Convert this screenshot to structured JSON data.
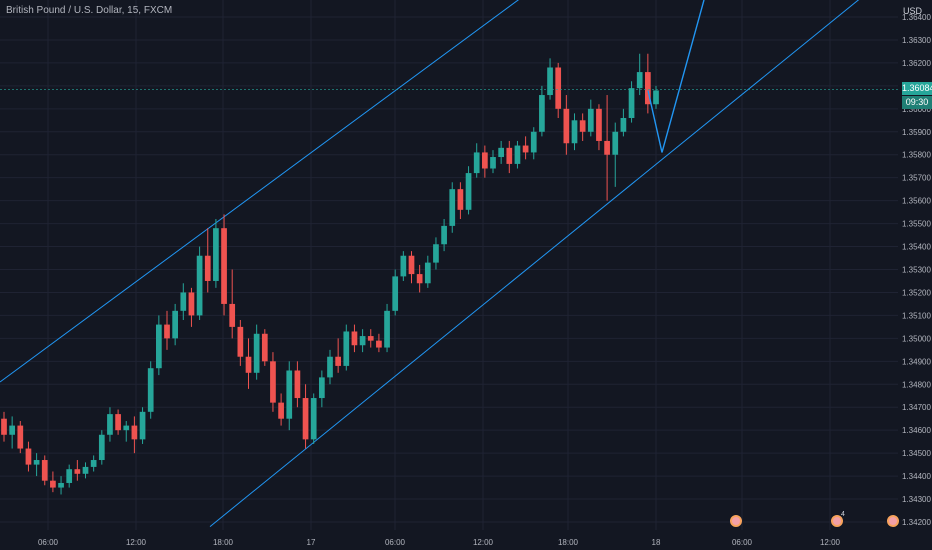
{
  "header": {
    "symbol_title": "British Pound / U.S. Dollar, 15, FXCM",
    "currency": "USD"
  },
  "price_tag": {
    "value": "1.36084",
    "countdown": "09:30"
  },
  "events": {
    "count_badge": "4"
  },
  "colors": {
    "background": "#131722",
    "grid": "#1f2333",
    "up": "#26a69a",
    "down": "#ef5350",
    "trend_line": "#2196f3",
    "text": "#b2b5be"
  },
  "chart_data": {
    "type": "candlestick",
    "xlabel": "",
    "ylabel": "",
    "x_ticks": [
      "06:00",
      "12:00",
      "18:00",
      "17",
      "06:00",
      "12:00",
      "18:00",
      "18",
      "06:00",
      "12:00"
    ],
    "y_ticks": [
      "1.34200",
      "1.34300",
      "1.34400",
      "1.34500",
      "1.34600",
      "1.34700",
      "1.34800",
      "1.34900",
      "1.35000",
      "1.35100",
      "1.35200",
      "1.35300",
      "1.35400",
      "1.35500",
      "1.35600",
      "1.35700",
      "1.35800",
      "1.35900",
      "1.36000",
      "1.36100",
      "1.36200",
      "1.36300",
      "1.36400"
    ],
    "ylim": [
      1.3415,
      1.3648
    ],
    "last_price": 1.36084,
    "candles": [
      [
        1.3465,
        1.3468,
        1.3455,
        1.3458
      ],
      [
        1.3458,
        1.3466,
        1.3452,
        1.3462
      ],
      [
        1.3462,
        1.3464,
        1.345,
        1.3452
      ],
      [
        1.3452,
        1.3455,
        1.3442,
        1.3445
      ],
      [
        1.3445,
        1.345,
        1.344,
        1.3447
      ],
      [
        1.3447,
        1.3449,
        1.3436,
        1.3438
      ],
      [
        1.3438,
        1.3442,
        1.3433,
        1.3435
      ],
      [
        1.3435,
        1.344,
        1.3432,
        1.3437
      ],
      [
        1.3437,
        1.3445,
        1.3435,
        1.3443
      ],
      [
        1.3443,
        1.3447,
        1.3438,
        1.3441
      ],
      [
        1.3441,
        1.3446,
        1.3439,
        1.3444
      ],
      [
        1.3444,
        1.3449,
        1.3442,
        1.3447
      ],
      [
        1.3447,
        1.346,
        1.3445,
        1.3458
      ],
      [
        1.3458,
        1.347,
        1.3455,
        1.3467
      ],
      [
        1.3467,
        1.3469,
        1.3458,
        1.346
      ],
      [
        1.346,
        1.3464,
        1.3455,
        1.3462
      ],
      [
        1.3462,
        1.3466,
        1.345,
        1.3456
      ],
      [
        1.3456,
        1.347,
        1.3454,
        1.3468
      ],
      [
        1.3468,
        1.349,
        1.3465,
        1.3487
      ],
      [
        1.3487,
        1.351,
        1.3484,
        1.3506
      ],
      [
        1.3506,
        1.3512,
        1.3495,
        1.35
      ],
      [
        1.35,
        1.3515,
        1.3497,
        1.3512
      ],
      [
        1.3512,
        1.3524,
        1.3508,
        1.352
      ],
      [
        1.352,
        1.3522,
        1.3505,
        1.351
      ],
      [
        1.351,
        1.354,
        1.3508,
        1.3536
      ],
      [
        1.3536,
        1.3548,
        1.352,
        1.3525
      ],
      [
        1.3525,
        1.3552,
        1.3522,
        1.3548
      ],
      [
        1.3548,
        1.3554,
        1.351,
        1.3515
      ],
      [
        1.3515,
        1.353,
        1.35,
        1.3505
      ],
      [
        1.3505,
        1.3508,
        1.3488,
        1.3492
      ],
      [
        1.3492,
        1.35,
        1.3478,
        1.3485
      ],
      [
        1.3485,
        1.3506,
        1.3482,
        1.3502
      ],
      [
        1.3502,
        1.3504,
        1.3488,
        1.349
      ],
      [
        1.349,
        1.3494,
        1.3468,
        1.3472
      ],
      [
        1.3472,
        1.3476,
        1.3462,
        1.3465
      ],
      [
        1.3465,
        1.349,
        1.346,
        1.3486
      ],
      [
        1.3486,
        1.349,
        1.347,
        1.3474
      ],
      [
        1.3474,
        1.348,
        1.3452,
        1.3456
      ],
      [
        1.3456,
        1.3476,
        1.3454,
        1.3474
      ],
      [
        1.3474,
        1.3486,
        1.347,
        1.3483
      ],
      [
        1.3483,
        1.3495,
        1.348,
        1.3492
      ],
      [
        1.3492,
        1.35,
        1.3485,
        1.3488
      ],
      [
        1.3488,
        1.3506,
        1.3486,
        1.3503
      ],
      [
        1.3503,
        1.3506,
        1.3494,
        1.3497
      ],
      [
        1.3497,
        1.3504,
        1.3494,
        1.3501
      ],
      [
        1.3501,
        1.3504,
        1.3496,
        1.3499
      ],
      [
        1.3499,
        1.3502,
        1.3494,
        1.3496
      ],
      [
        1.3496,
        1.3515,
        1.3494,
        1.3512
      ],
      [
        1.3512,
        1.353,
        1.351,
        1.3527
      ],
      [
        1.3527,
        1.3538,
        1.3525,
        1.3536
      ],
      [
        1.3536,
        1.3538,
        1.3524,
        1.3528
      ],
      [
        1.3528,
        1.3532,
        1.352,
        1.3524
      ],
      [
        1.3524,
        1.3536,
        1.3522,
        1.3533
      ],
      [
        1.3533,
        1.3544,
        1.353,
        1.3541
      ],
      [
        1.3541,
        1.3552,
        1.3538,
        1.3549
      ],
      [
        1.3549,
        1.3568,
        1.3546,
        1.3565
      ],
      [
        1.3565,
        1.3568,
        1.3552,
        1.3556
      ],
      [
        1.3556,
        1.3575,
        1.3554,
        1.3572
      ],
      [
        1.3572,
        1.3585,
        1.357,
        1.3581
      ],
      [
        1.3581,
        1.3584,
        1.357,
        1.3574
      ],
      [
        1.3574,
        1.3582,
        1.3572,
        1.3579
      ],
      [
        1.3579,
        1.3586,
        1.3576,
        1.3583
      ],
      [
        1.3583,
        1.3586,
        1.3572,
        1.3576
      ],
      [
        1.3576,
        1.3586,
        1.3574,
        1.3584
      ],
      [
        1.3584,
        1.3588,
        1.3578,
        1.3581
      ],
      [
        1.3581,
        1.3592,
        1.3578,
        1.359
      ],
      [
        1.359,
        1.361,
        1.3588,
        1.3606
      ],
      [
        1.3606,
        1.3622,
        1.3604,
        1.3618
      ],
      [
        1.3618,
        1.362,
        1.3596,
        1.36
      ],
      [
        1.36,
        1.3606,
        1.358,
        1.3585
      ],
      [
        1.3585,
        1.3598,
        1.3582,
        1.3595
      ],
      [
        1.3595,
        1.3598,
        1.3586,
        1.359
      ],
      [
        1.359,
        1.3604,
        1.3588,
        1.36
      ],
      [
        1.36,
        1.3602,
        1.3582,
        1.3586
      ],
      [
        1.3586,
        1.3606,
        1.356,
        1.358
      ],
      [
        1.358,
        1.3594,
        1.3566,
        1.359
      ],
      [
        1.359,
        1.36,
        1.3588,
        1.3596
      ],
      [
        1.3596,
        1.3612,
        1.3594,
        1.3609
      ],
      [
        1.3609,
        1.3624,
        1.3606,
        1.3616
      ],
      [
        1.3616,
        1.3624,
        1.3598,
        1.3602
      ],
      [
        1.3602,
        1.361,
        1.36,
        1.3608
      ]
    ],
    "trend_lines": [
      {
        "from": [
          "start",
          1.3481
        ],
        "to": [
          "top-edge",
          1.3648
        ],
        "note": "upper channel"
      },
      {
        "from": [
          "bottom-edge",
          1.342
        ],
        "to": [
          "top-right",
          1.3646
        ],
        "note": "lower channel"
      }
    ],
    "projection": [
      1.3608,
      1.3581,
      1.3648
    ]
  }
}
